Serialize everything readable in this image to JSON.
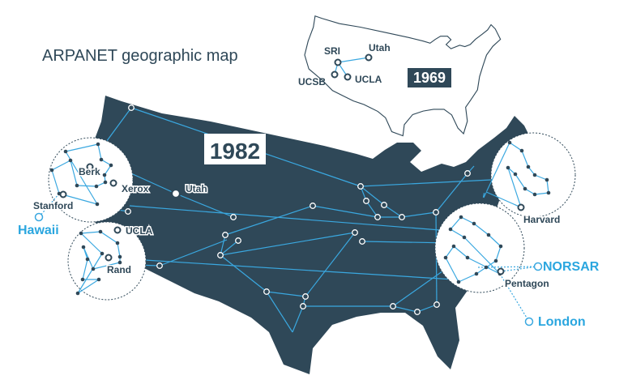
{
  "title": "ARPANET geographic map",
  "colors": {
    "land": "#2f4858",
    "link": "#3aa8e0",
    "text": "#2f4858",
    "external": "#2aa6df"
  },
  "inset_1969": {
    "year": "1969",
    "nodes": [
      "SRI",
      "Utah",
      "UCSB",
      "UCLA"
    ]
  },
  "map_1982": {
    "year": "1982",
    "labels": {
      "berk": "Berk",
      "xerox": "Xerox",
      "utah": "Utah",
      "stanford": "Stanford",
      "ucla": "UCLA",
      "rand": "Rand",
      "harvard": "Harvard",
      "pentagon": "Pentagon"
    },
    "external": {
      "hawaii": "Hawaii",
      "norsar": "NORSAR",
      "london": "London"
    }
  }
}
